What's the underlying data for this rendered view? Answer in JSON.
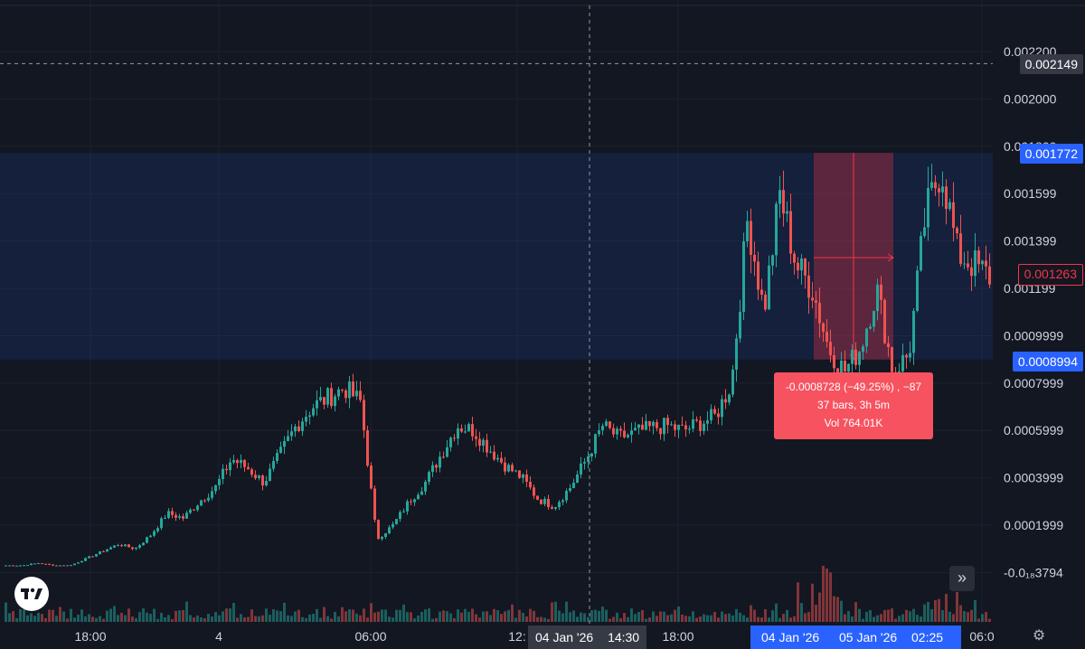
{
  "price_axis": {
    "labels": [
      "0.002200",
      "0.002000",
      "0.001800",
      "0.001599",
      "0.001399",
      "0.001199",
      "0.0009999",
      "0.0007999",
      "0.0005999",
      "0.0003999",
      "0.0001999",
      "-0.0₁₈3794"
    ],
    "crosshair_price": "0.002149",
    "range_high_price": "0.001772",
    "range_mid_price": "0.001263",
    "range_low_price": "0.0008994"
  },
  "time_axis": {
    "labels": [
      "18:00",
      "4",
      "06:00",
      "12:",
      "18:00",
      "06:0"
    ],
    "crosshair_time": {
      "date": "04 Jan '26",
      "time": "14:30"
    },
    "range_start": "04 Jan '26",
    "range_end_date": "05 Jan '26",
    "range_end_time": "02:25"
  },
  "measure_tooltip": {
    "line1": "-0.0008728 (−49.25%) , −87",
    "line2": "37 bars, 3h 5m",
    "line3": "Vol 764.01K"
  },
  "toolbar": {
    "scroll_icon": "double-chevron-right-icon",
    "settings_icon": "gear-icon",
    "logo": "tradingview-logo"
  },
  "colors": {
    "background": "#131722",
    "up": "#26a69a",
    "down": "#ef5350",
    "accent": "#2962ff",
    "measure_fill": "#f23645",
    "tooltip_bg": "#f7525f"
  },
  "chart_data": {
    "type": "candlestick",
    "y_range": [
      -0.0001,
      0.0022
    ],
    "grid": true,
    "price_path": [
      3e-05,
      3e-05,
      4e-05,
      3e-05,
      3e-05,
      6e-05,
      9e-05,
      0.00012,
      0.0001,
      0.00016,
      0.00025,
      0.00023,
      0.0003,
      0.00036,
      0.00048,
      0.00044,
      0.00038,
      0.0005,
      0.00062,
      0.0007,
      0.00074,
      0.00078,
      0.00072,
      0.00014,
      0.0002,
      0.0003,
      0.00038,
      0.0005,
      0.00062,
      0.0006,
      0.00052,
      0.00045,
      0.0004,
      0.00031,
      0.00028,
      0.00036,
      0.00048,
      0.00062,
      0.00057,
      0.00059,
      0.00061,
      0.00062,
      0.0006,
      0.00063,
      0.00066,
      0.0008,
      0.0015,
      0.0011,
      0.0016,
      0.0013,
      0.0012,
      0.00095,
      0.00085,
      0.00095,
      0.0012,
      0.00085,
      0.00092,
      0.0015,
      0.00172,
      0.00135,
      0.0013,
      0.00125
    ]
  }
}
